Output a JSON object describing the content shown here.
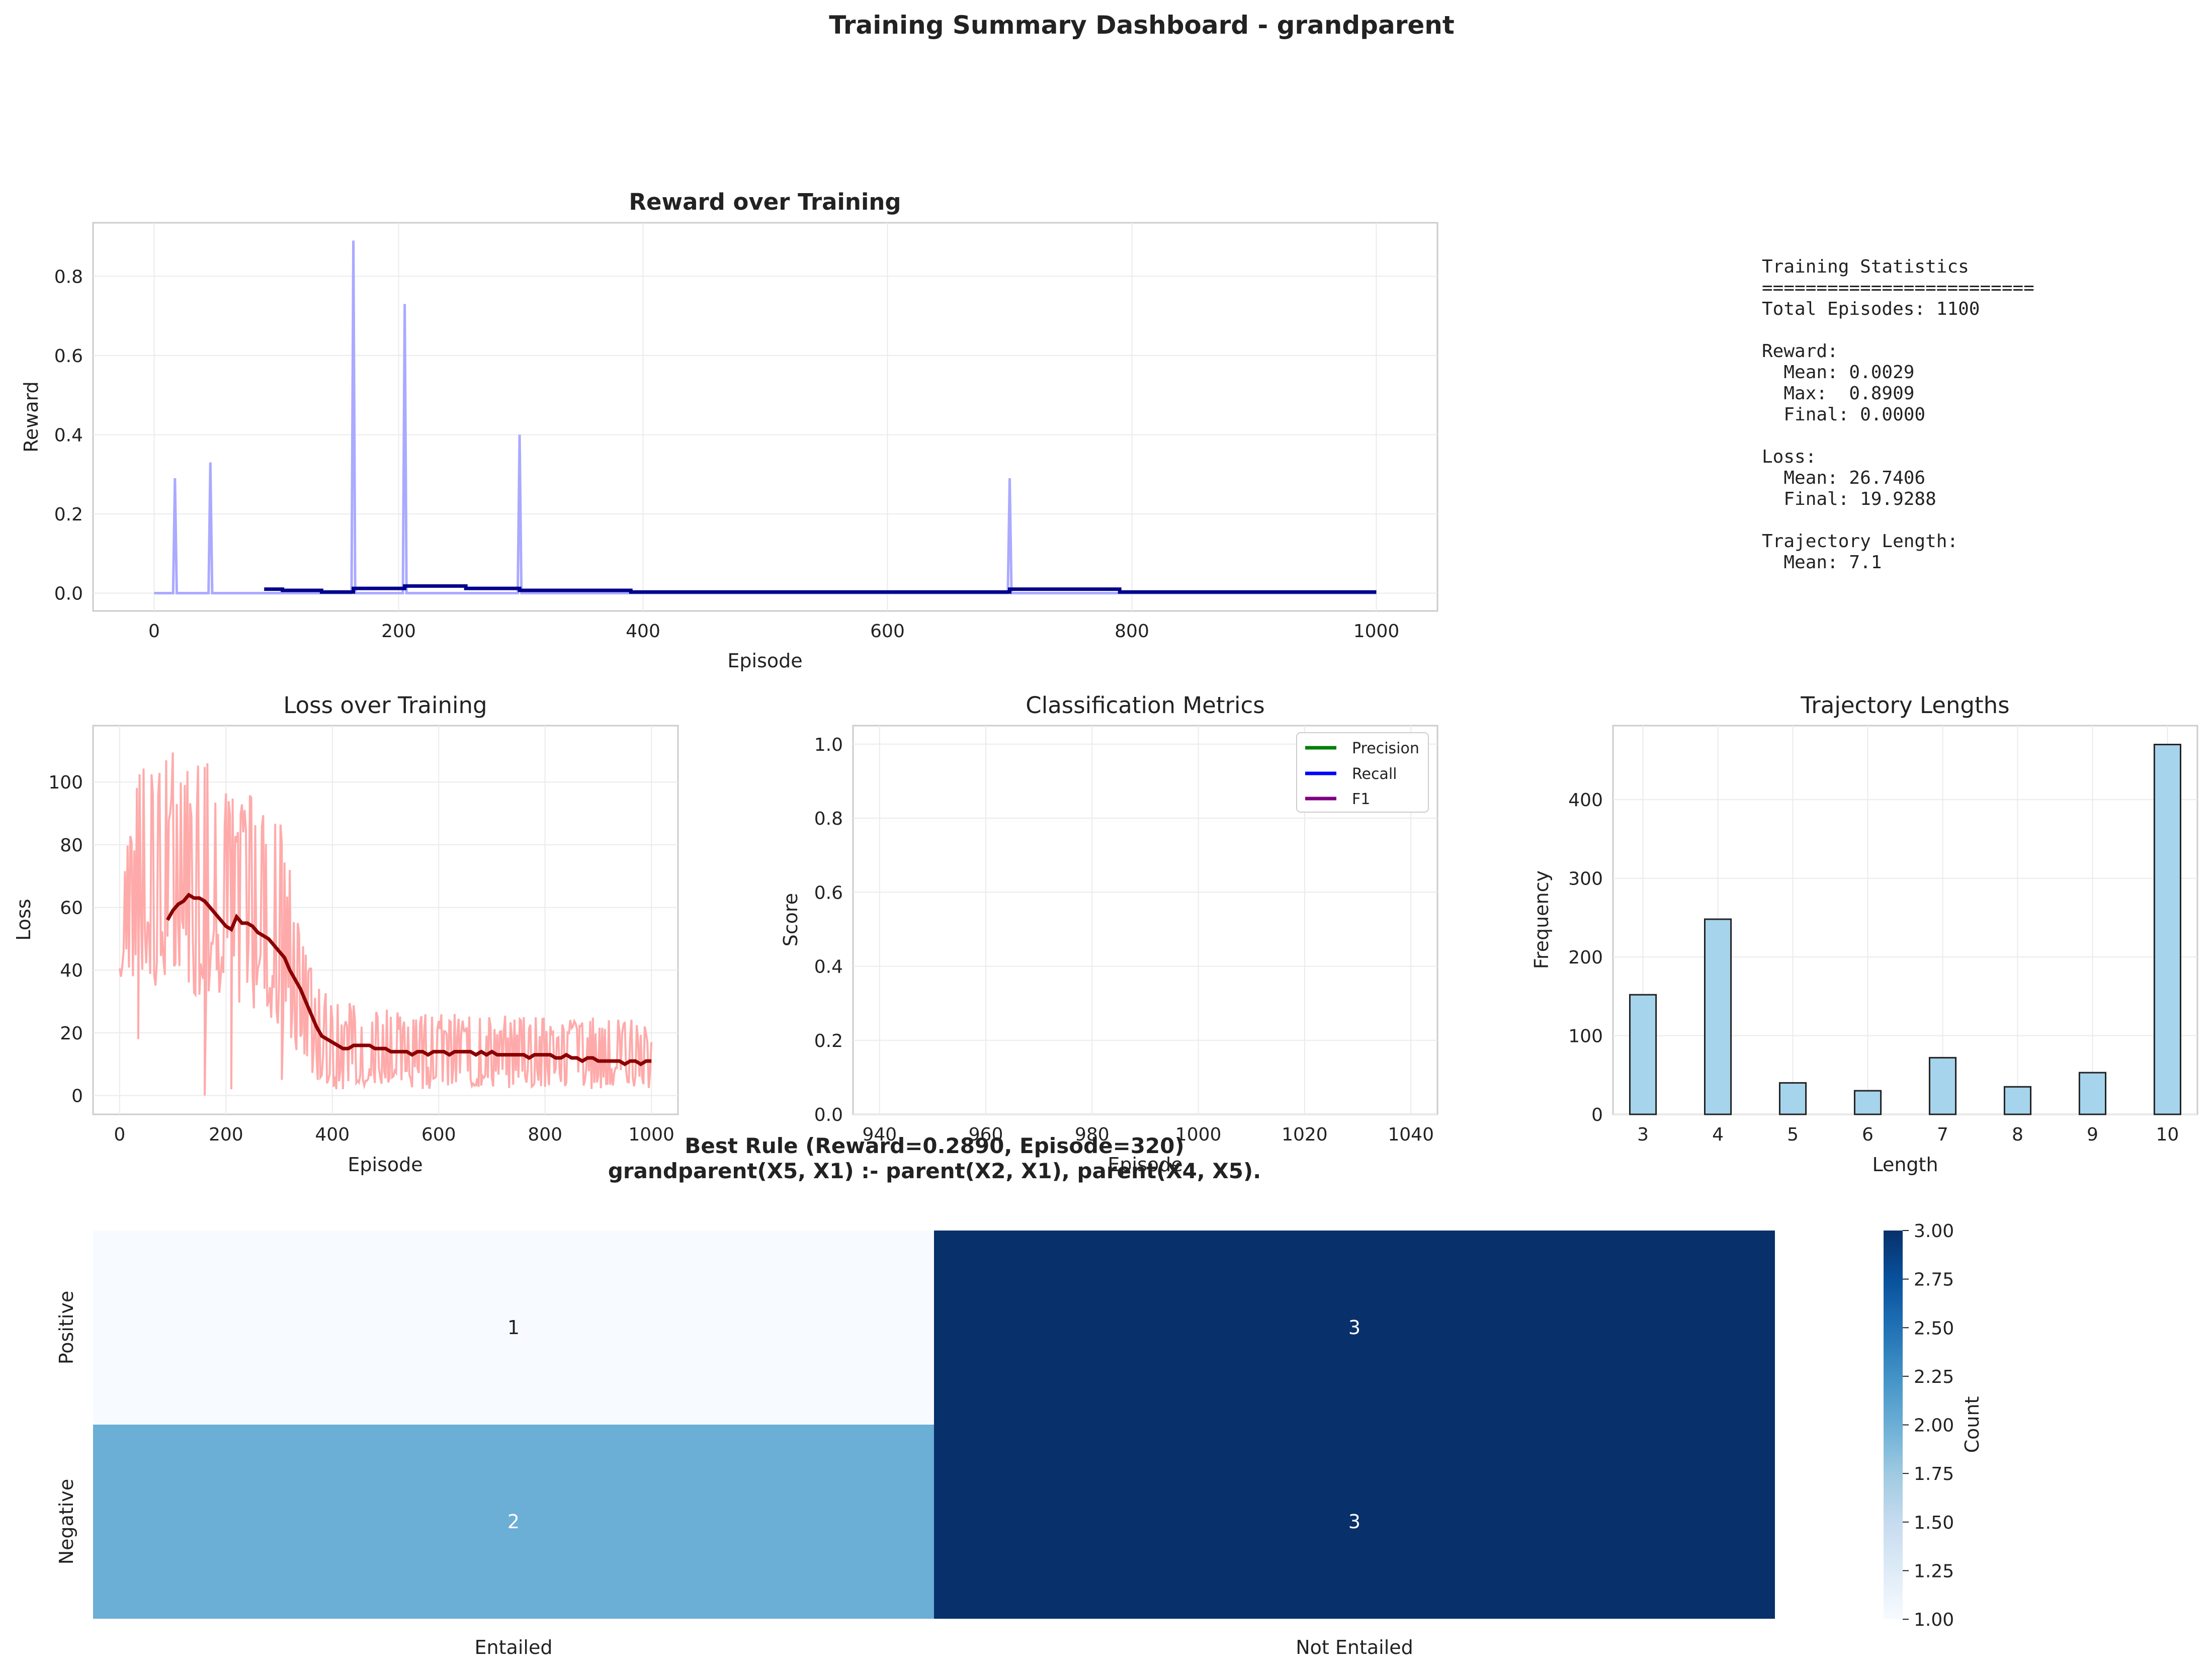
{
  "dashboard": {
    "suptitle": "Training Summary Dashboard - grandparent"
  },
  "stats_panel": {
    "lines": [
      "Training Statistics",
      "=========================",
      "Total Episodes: 1100",
      "",
      "Reward:",
      "  Mean: 0.0029",
      "  Max:  0.8909",
      "  Final: 0.0000",
      "",
      "Loss:",
      "  Mean: 26.7406",
      "  Final: 19.9288",
      "",
      "Trajectory Length:",
      "  Mean: 7.1"
    ]
  },
  "colors": {
    "reward_raw": "#aaaaff",
    "reward_smooth": "#00008b",
    "loss_raw": "#ffaaaa",
    "loss_smooth": "#8b0000",
    "precision": "#008000",
    "recall": "#0000ff",
    "f1": "#800080",
    "hist_fill": "#a6d4ec",
    "grid": "#ebebeb",
    "spine": "#cccccc",
    "cmap_low": "#f7fbff",
    "cmap_high": "#08306b"
  },
  "chart_data": [
    {
      "type": "line",
      "title": "Reward over Training",
      "xlabel": "Episode",
      "ylabel": "Reward",
      "xlim": [
        -50,
        1050
      ],
      "ylim": [
        -0.045,
        0.935
      ],
      "xticks": [
        0,
        200,
        400,
        600,
        800,
        1000
      ],
      "yticks": [
        0.0,
        0.2,
        0.4,
        0.6,
        0.8
      ],
      "grid": true,
      "series": [
        {
          "role": "raw",
          "spikes": [
            [
              17,
              0.29
            ],
            [
              46,
              0.33
            ],
            [
              163,
              0.89
            ],
            [
              205,
              0.73
            ],
            [
              299,
              0.4
            ],
            [
              700,
              0.29
            ]
          ]
        },
        {
          "role": "smoothed",
          "points": [
            [
              90,
              0.01
            ],
            [
              105,
              0.01
            ],
            [
              105,
              0.007
            ],
            [
              137,
              0.007
            ],
            [
              137,
              0.003
            ],
            [
              163,
              0.003
            ],
            [
              163,
              0.012
            ],
            [
              205,
              0.012
            ],
            [
              205,
              0.018
            ],
            [
              255,
              0.018
            ],
            [
              255,
              0.012
            ],
            [
              299,
              0.012
            ],
            [
              299,
              0.007
            ],
            [
              390,
              0.007
            ],
            [
              390,
              0.003
            ],
            [
              700,
              0.003
            ],
            [
              700,
              0.01
            ],
            [
              790,
              0.01
            ],
            [
              790,
              0.003
            ],
            [
              1000,
              0.003
            ]
          ]
        }
      ]
    },
    {
      "type": "line",
      "title": "Loss over Training",
      "xlabel": "Episode",
      "ylabel": "Loss",
      "xlim": [
        -50,
        1050
      ],
      "ylim": [
        -6,
        118
      ],
      "xticks": [
        0,
        200,
        400,
        600,
        800,
        1000
      ],
      "yticks": [
        0,
        20,
        40,
        60,
        80,
        100
      ],
      "grid": true,
      "series": [
        {
          "role": "raw_envelope",
          "points": [
            [
              0,
              35,
              68
            ],
            [
              20,
              38,
              85
            ],
            [
              40,
              35,
              112
            ],
            [
              60,
              33,
              112
            ],
            [
              80,
              33,
              110
            ],
            [
              100,
              33,
              110
            ],
            [
              120,
              33,
              110
            ],
            [
              140,
              32,
              109
            ],
            [
              160,
              30,
              108
            ],
            [
              180,
              32,
              108
            ],
            [
              200,
              30,
              106
            ],
            [
              220,
              28,
              103
            ],
            [
              240,
              28,
              100
            ],
            [
              260,
              27,
              96
            ],
            [
              280,
              25,
              90
            ],
            [
              300,
              22,
              88
            ],
            [
              320,
              15,
              80
            ],
            [
              340,
              10,
              60
            ],
            [
              360,
              6,
              45
            ],
            [
              380,
              3,
              35
            ],
            [
              400,
              2,
              30
            ],
            [
              450,
              2,
              30
            ],
            [
              500,
              2,
              28
            ],
            [
              550,
              2,
              26
            ],
            [
              600,
              2,
              26
            ],
            [
              650,
              2,
              26
            ],
            [
              700,
              2,
              26
            ],
            [
              750,
              2,
              25
            ],
            [
              800,
              2,
              25
            ],
            [
              850,
              2,
              25
            ],
            [
              900,
              2,
              25
            ],
            [
              950,
              2,
              25
            ],
            [
              1000,
              2,
              22
            ]
          ],
          "dips": [
            [
              35,
              18
            ],
            [
              160,
              0
            ],
            [
              210,
              2
            ],
            [
              305,
              5
            ]
          ]
        },
        {
          "role": "smoothed",
          "points": [
            [
              90,
              56
            ],
            [
              100,
              59
            ],
            [
              110,
              61
            ],
            [
              120,
              62
            ],
            [
              130,
              64
            ],
            [
              140,
              63
            ],
            [
              150,
              63
            ],
            [
              160,
              62
            ],
            [
              170,
              60
            ],
            [
              180,
              58
            ],
            [
              190,
              56
            ],
            [
              200,
              54
            ],
            [
              210,
              53
            ],
            [
              220,
              57
            ],
            [
              230,
              55
            ],
            [
              240,
              55
            ],
            [
              250,
              54
            ],
            [
              260,
              52
            ],
            [
              270,
              51
            ],
            [
              280,
              50
            ],
            [
              290,
              48
            ],
            [
              300,
              46
            ],
            [
              310,
              44
            ],
            [
              320,
              40
            ],
            [
              330,
              37
            ],
            [
              340,
              34
            ],
            [
              350,
              30
            ],
            [
              360,
              26
            ],
            [
              370,
              22
            ],
            [
              380,
              19
            ],
            [
              390,
              18
            ],
            [
              400,
              17
            ],
            [
              410,
              16
            ],
            [
              420,
              15
            ],
            [
              430,
              15
            ],
            [
              440,
              16
            ],
            [
              450,
              16
            ],
            [
              460,
              16
            ],
            [
              470,
              16
            ],
            [
              480,
              15
            ],
            [
              490,
              15
            ],
            [
              500,
              15
            ],
            [
              510,
              14
            ],
            [
              520,
              14
            ],
            [
              530,
              14
            ],
            [
              540,
              14
            ],
            [
              550,
              13
            ],
            [
              560,
              14
            ],
            [
              570,
              14
            ],
            [
              580,
              13
            ],
            [
              590,
              14
            ],
            [
              600,
              14
            ],
            [
              610,
              14
            ],
            [
              620,
              13
            ],
            [
              630,
              14
            ],
            [
              640,
              14
            ],
            [
              650,
              14
            ],
            [
              660,
              14
            ],
            [
              670,
              13
            ],
            [
              680,
              14
            ],
            [
              690,
              13
            ],
            [
              700,
              14
            ],
            [
              710,
              13
            ],
            [
              720,
              13
            ],
            [
              730,
              13
            ],
            [
              740,
              13
            ],
            [
              750,
              13
            ],
            [
              760,
              13
            ],
            [
              770,
              12
            ],
            [
              780,
              13
            ],
            [
              790,
              13
            ],
            [
              800,
              13
            ],
            [
              810,
              13
            ],
            [
              820,
              12
            ],
            [
              830,
              12
            ],
            [
              840,
              13
            ],
            [
              850,
              12
            ],
            [
              860,
              12
            ],
            [
              870,
              11
            ],
            [
              880,
              12
            ],
            [
              890,
              12
            ],
            [
              900,
              11
            ],
            [
              910,
              11
            ],
            [
              920,
              11
            ],
            [
              930,
              11
            ],
            [
              940,
              11
            ],
            [
              950,
              10
            ],
            [
              960,
              11
            ],
            [
              970,
              11
            ],
            [
              980,
              10
            ],
            [
              990,
              11
            ],
            [
              1000,
              11
            ]
          ]
        }
      ]
    },
    {
      "type": "line",
      "title": "Classification Metrics",
      "xlabel": "Episode",
      "ylabel": "Score",
      "xlim": [
        935,
        1045
      ],
      "ylim": [
        0,
        1.05
      ],
      "xticks": [
        940,
        960,
        980,
        1000,
        1020,
        1040
      ],
      "yticks": [
        0.0,
        0.2,
        0.4,
        0.6,
        0.8,
        1.0
      ],
      "grid": true,
      "legend": "top-right",
      "series": [
        {
          "name": "Precision",
          "values": []
        },
        {
          "name": "Recall",
          "values": []
        },
        {
          "name": "F1",
          "values": []
        }
      ]
    },
    {
      "type": "bar",
      "title": "Trajectory Lengths",
      "xlabel": "Length",
      "ylabel": "Frequency",
      "xlim": [
        2.6,
        10.4
      ],
      "ylim": [
        0,
        494
      ],
      "xticks": [
        3,
        4,
        5,
        6,
        7,
        8,
        9,
        10
      ],
      "yticks": [
        0,
        100,
        200,
        300,
        400
      ],
      "grid": true,
      "categories": [
        3,
        4,
        5,
        6,
        7,
        8,
        9,
        10
      ],
      "values": [
        152,
        248,
        40,
        30,
        72,
        35,
        53,
        470
      ]
    },
    {
      "type": "heatmap",
      "title": "Best Rule (Reward=0.2890, Episode=320)",
      "subtitle": "grandparent(X5, X1) :- parent(X2, X1), parent(X4, X5).",
      "rows": [
        "Positive",
        "Negative"
      ],
      "columns": [
        "Entailed",
        "Not Entailed"
      ],
      "values": [
        [
          1,
          3
        ],
        [
          2,
          3
        ]
      ],
      "colorbar_label": "Count",
      "colorbar_range": [
        1.0,
        3.0
      ],
      "colorbar_ticks": [
        "1.00",
        "1.25",
        "1.50",
        "1.75",
        "2.00",
        "2.25",
        "2.50",
        "2.75",
        "3.00"
      ]
    }
  ]
}
